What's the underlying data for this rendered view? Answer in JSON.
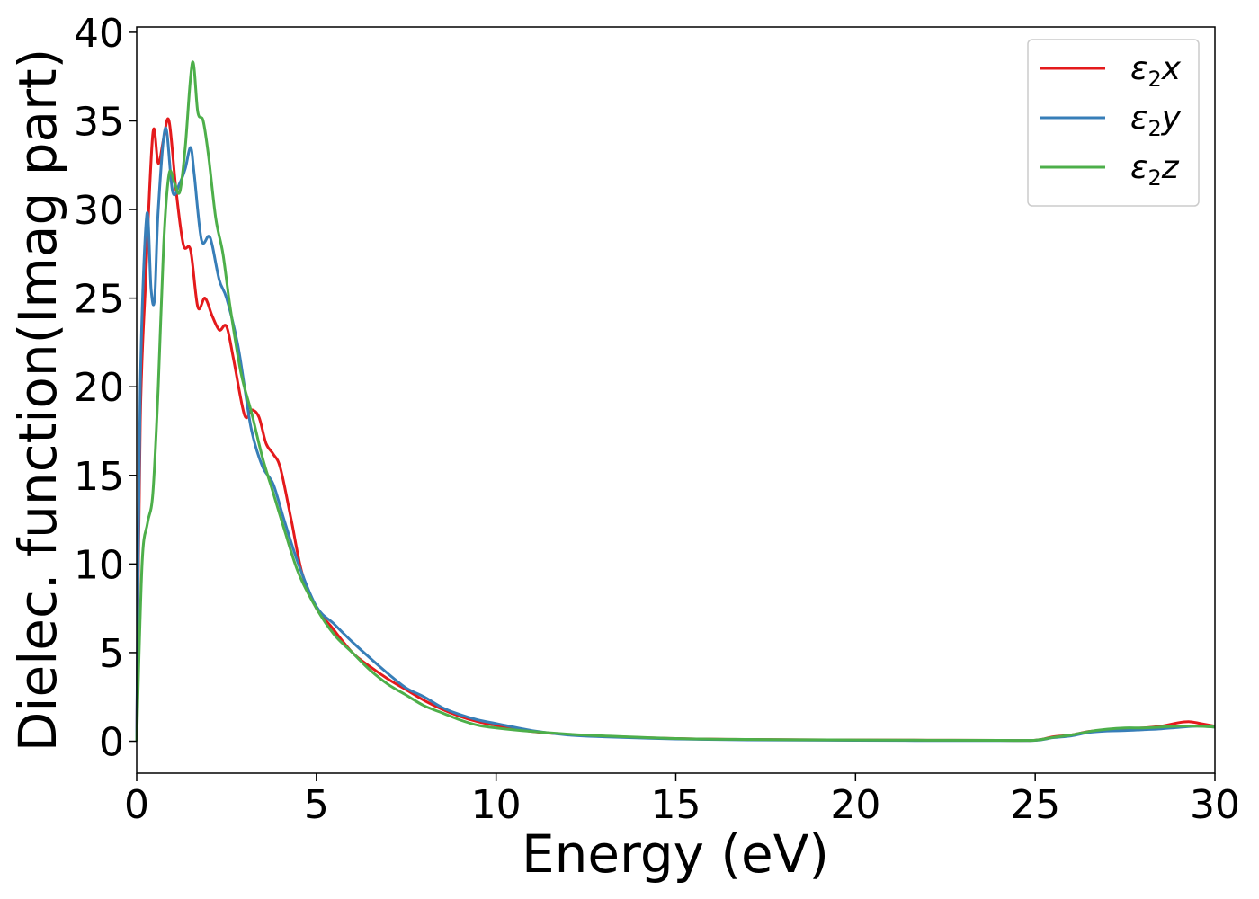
{
  "chart_data": {
    "type": "line",
    "title": "",
    "xlabel": "Energy (eV)",
    "ylabel": "Dielec. function(Imag part)",
    "xlim": [
      0,
      30
    ],
    "ylim": [
      -1.8,
      40.3
    ],
    "xticks": [
      0,
      5,
      10,
      15,
      20,
      25,
      30
    ],
    "yticks": [
      0,
      5,
      10,
      15,
      20,
      25,
      30,
      35,
      40
    ],
    "grid": false,
    "legend_position": "top-right",
    "series": [
      {
        "name": "ε₂x",
        "legend_base": "ε",
        "legend_sub": "2",
        "legend_var": "x",
        "color": "#e41a1c",
        "x": [
          0,
          0.1,
          0.25,
          0.45,
          0.6,
          0.75,
          0.9,
          1.1,
          1.3,
          1.5,
          1.7,
          1.9,
          2.1,
          2.3,
          2.5,
          2.7,
          3.0,
          3.2,
          3.4,
          3.6,
          3.8,
          4.0,
          4.3,
          4.6,
          5.0,
          5.4,
          6.0,
          6.5,
          7.0,
          7.5,
          8.0,
          8.5,
          9.0,
          9.5,
          10,
          11,
          12,
          13,
          15,
          17,
          20,
          22,
          24,
          25,
          25.5,
          26,
          26.5,
          27,
          27.5,
          28,
          28.5,
          29,
          29.3,
          29.6,
          30
        ],
        "y": [
          0,
          18,
          26,
          34.3,
          32.6,
          34.0,
          35.0,
          31.0,
          28.0,
          27.7,
          24.5,
          25.0,
          24.0,
          23.2,
          23.4,
          21.5,
          18.4,
          18.7,
          18.3,
          16.8,
          16.2,
          15.4,
          12.5,
          9.5,
          7.5,
          6.5,
          5.0,
          4.2,
          3.5,
          2.9,
          2.3,
          1.8,
          1.4,
          1.1,
          0.9,
          0.55,
          0.38,
          0.28,
          0.15,
          0.1,
          0.07,
          0.06,
          0.05,
          0.06,
          0.25,
          0.35,
          0.55,
          0.65,
          0.7,
          0.75,
          0.85,
          1.05,
          1.1,
          1.0,
          0.85
        ]
      },
      {
        "name": "ε₂y",
        "legend_base": "ε",
        "legend_sub": "2",
        "legend_var": "y",
        "color": "#377eb8",
        "x": [
          0,
          0.1,
          0.28,
          0.4,
          0.5,
          0.6,
          0.8,
          1.0,
          1.2,
          1.35,
          1.5,
          1.6,
          1.8,
          2.0,
          2.1,
          2.3,
          2.5,
          2.8,
          3.0,
          3.2,
          3.5,
          3.8,
          4.1,
          4.5,
          5.0,
          5.5,
          6.0,
          6.6,
          7.0,
          7.5,
          8.0,
          8.5,
          9.0,
          9.5,
          10,
          11,
          12,
          13,
          15,
          17,
          20,
          22,
          24,
          25,
          25.5,
          26,
          26.5,
          27,
          27.5,
          28,
          28.5,
          29,
          29.5,
          30
        ],
        "y": [
          0,
          20,
          29.7,
          25.5,
          25.0,
          30.0,
          34.6,
          31.0,
          31.5,
          32.3,
          33.5,
          32.0,
          28.3,
          28.5,
          28.0,
          26.0,
          25.0,
          22.5,
          20.0,
          17.5,
          15.5,
          14.5,
          12.5,
          10.0,
          7.6,
          6.6,
          5.6,
          4.5,
          3.8,
          3.0,
          2.5,
          1.9,
          1.5,
          1.2,
          1.0,
          0.6,
          0.35,
          0.25,
          0.13,
          0.08,
          0.05,
          0.04,
          0.04,
          0.05,
          0.2,
          0.3,
          0.5,
          0.58,
          0.6,
          0.65,
          0.7,
          0.78,
          0.85,
          0.8
        ]
      },
      {
        "name": "ε₂z",
        "legend_base": "ε",
        "legend_sub": "2",
        "legend_var": "z",
        "color": "#4daf4a",
        "x": [
          0,
          0.15,
          0.3,
          0.45,
          0.6,
          0.75,
          0.9,
          1.05,
          1.2,
          1.35,
          1.55,
          1.7,
          1.85,
          2.0,
          2.2,
          2.4,
          2.6,
          2.9,
          3.2,
          3.5,
          3.8,
          4.1,
          4.5,
          5.0,
          5.5,
          6.0,
          6.5,
          7.0,
          7.5,
          8.0,
          8.5,
          9.0,
          9.5,
          10,
          11,
          12,
          13,
          15,
          17,
          20,
          22,
          24,
          25,
          25.5,
          26,
          26.5,
          27,
          27.5,
          28,
          28.5,
          29,
          29.5,
          30
        ],
        "y": [
          0,
          10,
          12.3,
          14,
          20,
          28,
          32.0,
          31.5,
          31.0,
          33.5,
          38.3,
          35.5,
          35.0,
          33.0,
          29.5,
          27.5,
          24.5,
          20.8,
          18.5,
          16.0,
          14.0,
          12.0,
          9.5,
          7.5,
          6.0,
          5.0,
          4.0,
          3.2,
          2.6,
          2.0,
          1.6,
          1.2,
          0.9,
          0.75,
          0.55,
          0.4,
          0.3,
          0.15,
          0.1,
          0.07,
          0.06,
          0.05,
          0.06,
          0.22,
          0.35,
          0.55,
          0.68,
          0.75,
          0.75,
          0.8,
          0.85,
          0.85,
          0.8
        ]
      }
    ]
  }
}
